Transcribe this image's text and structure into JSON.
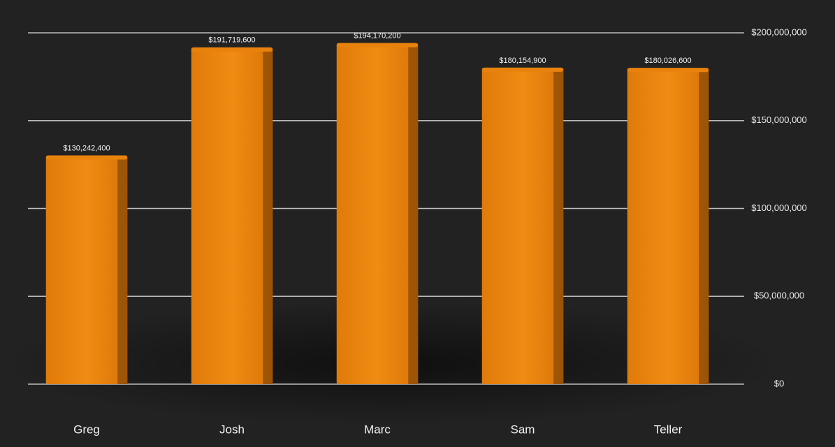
{
  "chart_data": {
    "type": "bar",
    "categories": [
      "Greg",
      "Josh",
      "Marc",
      "Sam",
      "Teller"
    ],
    "values": [
      130242400,
      191719600,
      194170200,
      180154900,
      180026600
    ],
    "value_labels": [
      "$130,242,400",
      "$191,719,600",
      "$194,170,200",
      "$180,154,900",
      "$180,026,600"
    ],
    "color": "#e8820c",
    "ylim": [
      0,
      200000000
    ],
    "yticks": [
      {
        "value": 0,
        "label": "$0"
      },
      {
        "value": 50000000,
        "label": "$50,000,000"
      },
      {
        "value": 100000000,
        "label": "$100,000,000"
      },
      {
        "value": 150000000,
        "label": "$150,000,000"
      },
      {
        "value": 200000000,
        "label": "$200,000,000"
      }
    ],
    "grid": true
  }
}
